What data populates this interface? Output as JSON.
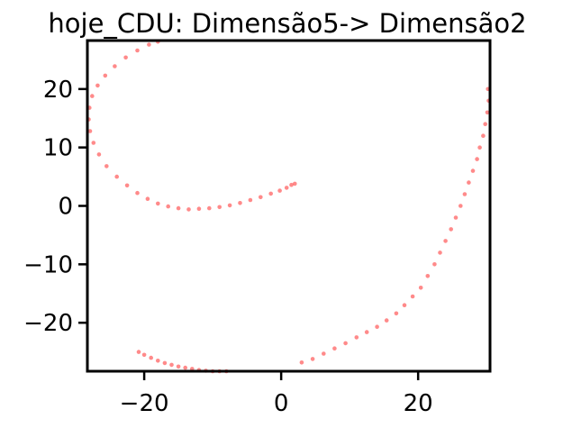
{
  "chart_data": {
    "type": "scatter",
    "title": "hoje_CDU: Dimensão5-> Dimensão2",
    "xlabel": "",
    "ylabel": "",
    "xlim": [
      -28.3,
      30.5
    ],
    "ylim": [
      -28.3,
      28.3
    ],
    "x_ticks": [
      -20,
      0,
      20
    ],
    "y_ticks": [
      -20,
      -10,
      0,
      10,
      20
    ],
    "x_tick_labels": [
      "−20",
      "0",
      "20"
    ],
    "y_tick_labels": [
      "−20",
      "−10",
      "0",
      "10",
      "20"
    ],
    "grid": false,
    "legend": "none",
    "color": "#ff2a2a",
    "series": [
      {
        "points": [
          [
            2.0,
            3.8
          ],
          [
            1.5,
            3.6
          ],
          [
            0.8,
            3.1
          ],
          [
            -0.2,
            2.6
          ],
          [
            -1.5,
            2.1
          ],
          [
            -3.0,
            1.5
          ],
          [
            -4.5,
            1.0
          ],
          [
            -6.0,
            0.5
          ],
          [
            -7.5,
            0.1
          ],
          [
            -9.0,
            -0.2
          ],
          [
            -10.5,
            -0.4
          ],
          [
            -12.0,
            -0.5
          ],
          [
            -13.5,
            -0.6
          ],
          [
            -15.0,
            -0.4
          ],
          [
            -16.5,
            -0.1
          ],
          [
            -18.0,
            0.4
          ],
          [
            -19.5,
            1.2
          ],
          [
            -21.0,
            2.2
          ],
          [
            -22.5,
            3.5
          ],
          [
            -24.0,
            5.0
          ],
          [
            -25.5,
            6.8
          ],
          [
            -26.6,
            8.8
          ],
          [
            -27.4,
            10.8
          ],
          [
            -27.9,
            12.8
          ],
          [
            -28.1,
            14.8
          ],
          [
            -28.0,
            16.8
          ],
          [
            -27.6,
            18.8
          ],
          [
            -26.8,
            20.6
          ],
          [
            -25.7,
            22.3
          ],
          [
            -24.3,
            23.9
          ],
          [
            -22.7,
            25.4
          ],
          [
            -21.0,
            26.6
          ],
          [
            -19.3,
            27.6
          ],
          [
            -18.0,
            28.1
          ]
        ]
      },
      {
        "points": [
          [
            30.2,
            20.0
          ],
          [
            30.3,
            18.0
          ],
          [
            30.1,
            16.0
          ],
          [
            29.8,
            14.0
          ],
          [
            29.5,
            12.0
          ],
          [
            29.0,
            10.0
          ],
          [
            28.6,
            8.0
          ],
          [
            28.0,
            6.0
          ],
          [
            27.4,
            4.0
          ],
          [
            26.8,
            2.0
          ],
          [
            26.2,
            0.0
          ],
          [
            25.5,
            -2.0
          ],
          [
            24.8,
            -4.0
          ],
          [
            24.0,
            -6.0
          ],
          [
            23.2,
            -8.0
          ],
          [
            22.4,
            -10.0
          ],
          [
            21.4,
            -12.0
          ],
          [
            20.4,
            -14.0
          ],
          [
            19.2,
            -15.5
          ],
          [
            18.0,
            -17.0
          ],
          [
            16.8,
            -18.4
          ],
          [
            15.4,
            -19.6
          ],
          [
            14.0,
            -20.7
          ],
          [
            12.5,
            -21.6
          ],
          [
            11.0,
            -22.5
          ],
          [
            9.4,
            -23.5
          ],
          [
            7.8,
            -24.4
          ],
          [
            6.2,
            -25.3
          ],
          [
            4.6,
            -26.2
          ],
          [
            3.0,
            -26.8
          ]
        ]
      },
      {
        "points": [
          [
            -20.8,
            -25.0
          ],
          [
            -20.0,
            -25.5
          ],
          [
            -19.0,
            -26.0
          ],
          [
            -18.0,
            -26.5
          ],
          [
            -17.0,
            -26.9
          ],
          [
            -16.0,
            -27.2
          ],
          [
            -15.0,
            -27.5
          ],
          [
            -14.0,
            -27.7
          ],
          [
            -13.0,
            -27.9
          ],
          [
            -12.0,
            -28.1
          ],
          [
            -11.0,
            -28.2
          ],
          [
            -10.0,
            -28.3
          ],
          [
            -9.0,
            -28.3
          ],
          [
            -8.0,
            -28.3
          ]
        ]
      }
    ]
  }
}
